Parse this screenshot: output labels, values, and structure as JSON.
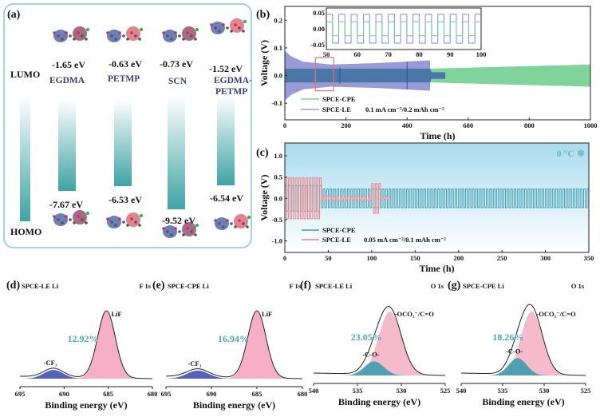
{
  "panel_a": {
    "label": "(a)",
    "lumo_label": "LUMO",
    "homo_label": "HOMO",
    "molecules": [
      {
        "name": "EGDMA",
        "lumo": "-1.65 eV",
        "homo": "-7.67 eV"
      },
      {
        "name": "PETMP",
        "lumo": "-0.63 eV",
        "homo": "-6.53 eV"
      },
      {
        "name": "SCN",
        "lumo": "-0.73 eV",
        "homo": "-9.52 eV"
      },
      {
        "name": "EGDMA-",
        "name2": "PETMP",
        "lumo": "-1.52 eV",
        "homo": "-6.54 eV"
      }
    ],
    "colors": {
      "bar": "#3fa3a5",
      "border": "#8cc8c8"
    }
  },
  "chart_data": [
    {
      "id": "b",
      "label": "(b)",
      "type": "line",
      "xlabel": "Time (h)",
      "ylabel": "Voltage (V)",
      "xlim": [
        0,
        1000
      ],
      "ylim": [
        -0.16,
        0.25
      ],
      "xticks": [
        0,
        200,
        400,
        600,
        800,
        1000
      ],
      "yticks": [
        -0.1,
        0.0,
        0.1,
        0.2
      ],
      "ytick_labels": [
        "-0.1",
        "0.0",
        "0.1",
        "0.2"
      ],
      "legend": [
        "SPCE-CPE",
        "SPCE-LE"
      ],
      "annotation": "0.1 mA cm⁻²/0.2 mAh cm⁻²",
      "series": [
        {
          "name": "SPCE-LE",
          "color": "#9a9ad8",
          "envelope_t": [
            0,
            20,
            60,
            150,
            300,
            475,
            476
          ],
          "envelope_amp": [
            0.09,
            0.07,
            0.05,
            0.04,
            0.045,
            0.055,
            0
          ]
        },
        {
          "name": "SPCE-CPE",
          "color": "#7fd39b",
          "envelope_t": [
            0,
            475,
            480,
            1000
          ],
          "envelope_amp": [
            0.025,
            0.025,
            0.025,
            0.04
          ]
        },
        {
          "name": "overlap",
          "color": "#4a76a8",
          "envelope_t": [
            0,
            475,
            480,
            525
          ],
          "envelope_amp": [
            0.025,
            0.025,
            0.012,
            0.012
          ]
        }
      ],
      "inset": {
        "xlim": [
          50,
          100
        ],
        "ylim": [
          -0.065,
          0.065
        ],
        "xticks": [
          50,
          60,
          70,
          80,
          90,
          100
        ],
        "yticks": [
          -0.05,
          0.0,
          0.05
        ],
        "ytick_labels": [
          "-0.05",
          "0.00",
          "0.05"
        ],
        "period_h": 4,
        "amp_le": 0.045,
        "amp_cpe": 0.022
      },
      "highlight_range": [
        100,
        160
      ]
    },
    {
      "id": "c",
      "label": "(c)",
      "type": "line",
      "xlabel": "Time (h)",
      "ylabel": "Voltage (V)",
      "xlim": [
        0,
        350
      ],
      "ylim": [
        -1.27,
        1.3
      ],
      "xticks": [
        0,
        50,
        100,
        150,
        200,
        250,
        300,
        350
      ],
      "yticks": [
        -1.0,
        -0.5,
        0.0,
        0.5,
        1.0
      ],
      "ytick_labels": [
        "-1.0",
        "-0.5",
        "0.0",
        "0.5",
        "1.0"
      ],
      "legend": [
        "SPCE-CPE",
        "SPCE-LE"
      ],
      "annotation": "0.05 mA cm⁻²/0.1 mAh cm⁻²",
      "temperature": "0 °C ❄",
      "series": [
        {
          "name": "SPCE-CPE",
          "color": "#3f9db0",
          "period_h": 4,
          "segments": [
            [
              0,
              42,
              0.3
            ],
            [
              42,
              350,
              0.22
            ]
          ]
        },
        {
          "name": "SPCE-LE",
          "color": "#ef7f86",
          "period_h": 4,
          "segments": [
            [
              0,
              42,
              0.48
            ],
            [
              42,
              100,
              0.05
            ],
            [
              100,
              110,
              0.35
            ],
            [
              110,
              122,
              0.03
            ]
          ]
        }
      ]
    },
    {
      "id": "d",
      "label": "(d)",
      "type": "area",
      "title": "SPCE-LE Li",
      "core": "F 1s",
      "xlabel": "Binding energy (eV)",
      "xlim": [
        695,
        680
      ],
      "xticks": [
        695,
        690,
        685,
        680
      ],
      "percent": "12.92%",
      "peaks": [
        {
          "name": "-CF₃",
          "center": 691.2,
          "height": 0.13,
          "sigma": 1.1,
          "color": "#4150b0"
        },
        {
          "name": "LiF",
          "center": 685.2,
          "height": 1.0,
          "sigma": 1.0,
          "color": "#f5a6c0"
        }
      ]
    },
    {
      "id": "e",
      "label": "(e)",
      "type": "area",
      "title": "SPCE-CPE Li",
      "core": "F 1s",
      "xlabel": "Binding energy (eV)",
      "xlim": [
        695,
        680
      ],
      "xticks": [
        695,
        690,
        685,
        680
      ],
      "percent": "16.94%",
      "peaks": [
        {
          "name": "-CF₃",
          "center": 691.5,
          "height": 0.12,
          "sigma": 1.2,
          "color": "#4150b0"
        },
        {
          "name": "LiF",
          "center": 685.0,
          "height": 1.0,
          "sigma": 1.0,
          "color": "#f5a6c0"
        }
      ]
    },
    {
      "id": "f",
      "label": "(f)",
      "type": "area",
      "title": "SPCE-LE Li",
      "core": "O 1s",
      "xlabel": "Binding energy (eV)",
      "xlim": [
        540,
        525
      ],
      "xticks": [
        540,
        535,
        530,
        525
      ],
      "percent": "23.05%",
      "peaks": [
        {
          "name": "-C-O-",
          "center": 533.1,
          "height": 0.22,
          "sigma": 1.1,
          "color": "#3f9bad"
        },
        {
          "name": "-OCO₂⁻/C=O",
          "center": 531.3,
          "height": 1.0,
          "sigma": 1.3,
          "color": "#f5b2c8"
        }
      ]
    },
    {
      "id": "g",
      "label": "(g)",
      "type": "area",
      "title": "SPCE-CPE Li",
      "core": "O 1s",
      "xlabel": "Binding energy (eV)",
      "xlim": [
        540,
        525
      ],
      "xticks": [
        540,
        535,
        530,
        525
      ],
      "percent": "18.26%",
      "peaks": [
        {
          "name": "-C-O-",
          "center": 533.2,
          "height": 0.27,
          "sigma": 1.1,
          "color": "#3f9bad"
        },
        {
          "name": "-OCO₂⁻/C=O",
          "center": 531.5,
          "height": 1.0,
          "sigma": 1.3,
          "color": "#f5b2c8"
        }
      ]
    }
  ]
}
